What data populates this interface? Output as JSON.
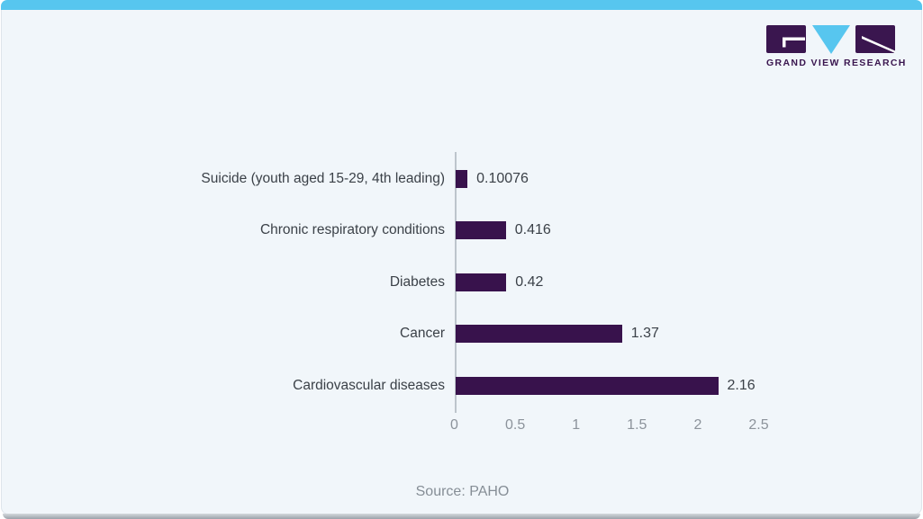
{
  "brand": {
    "name": "GRAND VIEW RESEARCH",
    "logo_icons": [
      "g-block-icon",
      "v-triangle-icon",
      "r-block-icon"
    ]
  },
  "chart_data": {
    "type": "bar",
    "orientation": "horizontal",
    "title": "",
    "xlabel": "",
    "ylabel": "",
    "categories": [
      "Suicide (youth aged 15-29, 4th leading)",
      "Chronic respiratory conditions",
      "Diabetes",
      "Cancer",
      "Cardiovascular diseases"
    ],
    "values": [
      0.10076,
      0.416,
      0.42,
      1.37,
      2.16
    ],
    "value_labels": [
      "0.10076",
      "0.416",
      "0.42",
      "1.37",
      "2.16"
    ],
    "x_ticks": [
      "0",
      "0.5",
      "1",
      "1.5",
      "2",
      "2.5"
    ],
    "x_tick_values": [
      0,
      0.5,
      1,
      1.5,
      2,
      2.5
    ],
    "xlim": [
      0,
      2.5
    ],
    "grid": false,
    "legend": "none"
  },
  "source": {
    "label": "Source: PAHO"
  },
  "colors": {
    "bar": "#38124C",
    "accent_cyan": "#57C6EF",
    "logo_purple": "#3A164F",
    "card_background": "#F1F6FA",
    "axis_line": "#BDC5CC",
    "label_text": "#3B4148",
    "tick_text": "#8C939B",
    "source_text": "#868E96"
  }
}
